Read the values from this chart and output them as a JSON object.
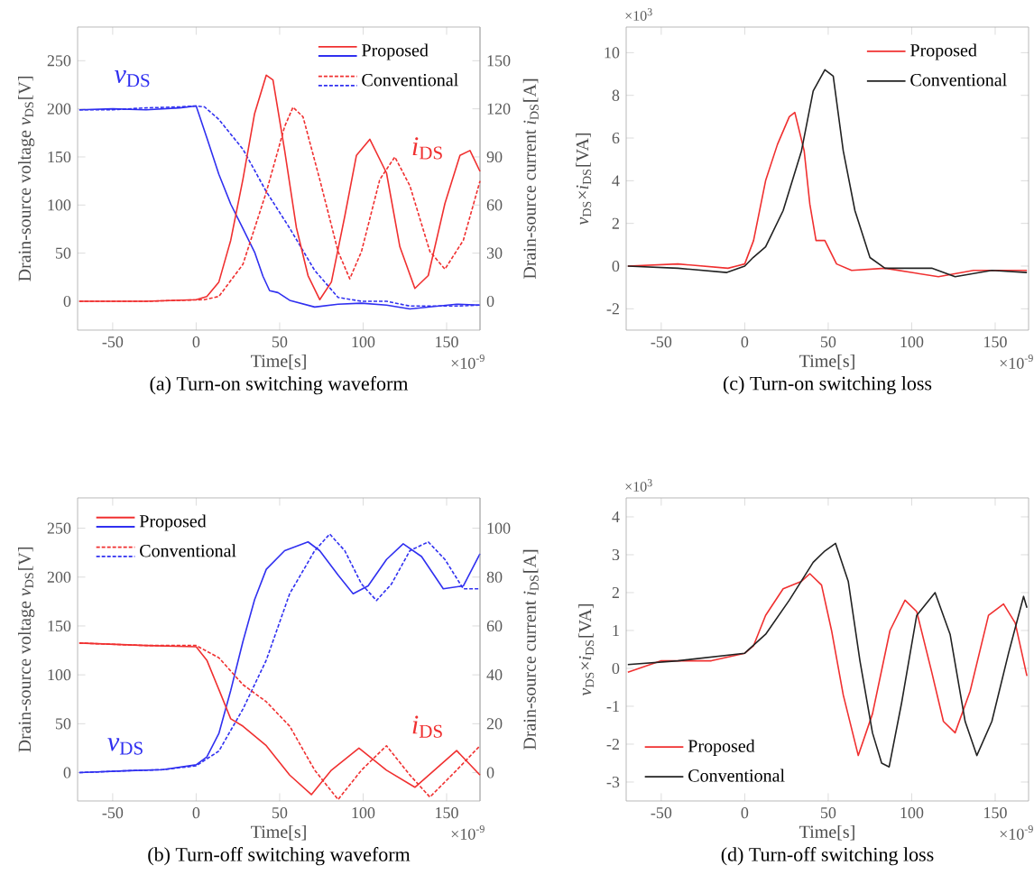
{
  "chart_data": [
    {
      "type": "line",
      "title": "(a)  Turn-on switching waveform",
      "xlabel": "Time[s]",
      "ylabel": "Drain-source voltage *v*$_{DS}$[V]",
      "y2label": "Drain-source current *i*$_{DS}$[A]",
      "xlim": [
        -71,
        170
      ],
      "xticks": [
        -50,
        0,
        50,
        100,
        150
      ],
      "ylim": [
        -30,
        285
      ],
      "yticks": [
        0,
        50,
        100,
        150,
        200,
        250
      ],
      "y2lim": [
        -18,
        171
      ],
      "y2ticks": [
        0,
        30,
        60,
        90,
        120,
        150
      ],
      "legend": "top right",
      "annotations": [
        "×10$^{-9}$",
        "*v*$_{DS}$",
        "*i*$_{DS}$"
      ],
      "series": [
        {
          "name": "Proposed",
          "color": "#f03030",
          "axis": "y2",
          "line_style": "solid",
          "x": [
            -70,
            -30,
            0,
            6.4,
            13.6,
            20.7,
            28,
            35,
            42,
            46,
            53,
            60,
            67,
            74,
            81,
            89,
            96,
            104,
            114,
            122,
            131,
            139,
            149,
            158,
            164,
            170
          ],
          "values": [
            0,
            0,
            1,
            3,
            12,
            38,
            76,
            117,
            141,
            138,
            94,
            46,
            16,
            1,
            12,
            53,
            91,
            101,
            80,
            34,
            8,
            16,
            61,
            91,
            94,
            81
          ]
        },
        {
          "color": "#3030f0",
          "line_style": "solid",
          "x": [
            -70,
            -50,
            -30,
            -10,
            0,
            6.4,
            13.6,
            20.7,
            27.9,
            35,
            40,
            44,
            49,
            56,
            71,
            85,
            99,
            114,
            128,
            156,
            170
          ],
          "values": [
            199,
            200,
            199,
            201,
            203,
            170,
            132,
            101,
            76,
            51,
            26,
            11,
            9,
            1,
            -6,
            -3,
            -2,
            -4,
            -8,
            -3,
            -4
          ]
        },
        {
          "name": "Conventional",
          "color": "#f03030",
          "axis": "y2",
          "line_style": "dashed",
          "x": [
            -70,
            -30,
            5,
            13.6,
            28,
            42,
            53,
            58,
            64,
            74,
            85,
            92,
            99,
            110,
            119,
            128,
            140,
            149,
            160,
            170
          ],
          "values": [
            0,
            0,
            1,
            3,
            23,
            68,
            109,
            121,
            115,
            76,
            31,
            14,
            31,
            76,
            90,
            72,
            31,
            20,
            38,
            75
          ]
        },
        {
          "color": "#3030f0",
          "line_style": "dashed",
          "x": [
            -70,
            -50,
            -30,
            -10,
            0,
            5,
            13.6,
            28,
            42,
            56,
            71,
            85,
            99,
            114,
            128,
            156,
            170
          ],
          "values": [
            199,
            199,
            201,
            202,
            203,
            202,
            189,
            158,
            114,
            76,
            32,
            4,
            0,
            0,
            -5,
            -5,
            -4
          ]
        }
      ]
    },
    {
      "type": "line",
      "title": "(c)  Turn-on switching loss",
      "xlabel": "Time[s]",
      "ylabel": "*v*$_{DS}$×*i*$_{DS}$[VA]",
      "xlim": [
        -71,
        170
      ],
      "xticks": [
        -50,
        0,
        50,
        100,
        150
      ],
      "ylim": [
        -3,
        11.2
      ],
      "yticks": [
        -2,
        0,
        2,
        4,
        6,
        8,
        10
      ],
      "legend": "top right",
      "annotations": [
        "×10$^{-9}$",
        "×10$^{3}$"
      ],
      "series": [
        {
          "name": "Proposed",
          "color": "#f03030",
          "line_style": "solid",
          "x": [
            -70,
            -40,
            -10,
            -5,
            0,
            5.3,
            12.5,
            19.6,
            26.7,
            30,
            35.6,
            39,
            42.7,
            48,
            55,
            64,
            84,
            116,
            137,
            169
          ],
          "values": [
            0,
            0.1,
            -0.1,
            0,
            0.1,
            1.2,
            4.0,
            5.7,
            7.0,
            7.2,
            5.4,
            2.9,
            1.2,
            1.2,
            0.1,
            -0.2,
            -0.1,
            -0.5,
            -0.2,
            -0.2
          ]
        },
        {
          "name": "Conventional",
          "color": "#222222",
          "line_style": "solid",
          "x": [
            -70,
            -40,
            -10.7,
            0,
            5,
            12.5,
            23,
            34,
            41,
            48,
            53,
            59,
            66,
            75,
            84,
            112,
            126,
            148,
            169
          ],
          "values": [
            0,
            -0.1,
            -0.3,
            0,
            0.4,
            0.9,
            2.6,
            5.4,
            8.2,
            9.2,
            8.9,
            5.4,
            2.6,
            0.4,
            -0.1,
            -0.1,
            -0.5,
            -0.2,
            -0.3
          ]
        }
      ]
    },
    {
      "type": "line",
      "title": "(b)  Turn-off switching waveform",
      "xlabel": "Time[s]",
      "ylabel": "Drain-source voltage *v*$_{DS}$[V]",
      "y2label": "Drain-source current *i*$_{DS}$[A]",
      "xlim": [
        -71,
        170
      ],
      "xticks": [
        -50,
        0,
        50,
        100,
        150
      ],
      "ylim": [
        -29,
        281
      ],
      "yticks": [
        0,
        50,
        100,
        150,
        200,
        250
      ],
      "y2lim": [
        -11.6,
        112.4
      ],
      "y2ticks": [
        0,
        20,
        40,
        60,
        80,
        100
      ],
      "legend": "top left",
      "annotations": [
        "×10$^{-9}$",
        "*v*$_{DS}$",
        "*i*$_{DS}$"
      ],
      "series": [
        {
          "name": "Proposed",
          "color": "#f03030",
          "axis": "y2",
          "line_style": "solid",
          "x": [
            -70,
            -30,
            0,
            6.4,
            13.6,
            20.7,
            28,
            42,
            56,
            69,
            81,
            97.5,
            114,
            131,
            156,
            170
          ],
          "values": [
            53,
            52,
            51.5,
            46,
            34,
            22,
            19,
            11,
            -1,
            -9,
            1,
            10,
            1,
            -6,
            9,
            -1
          ]
        },
        {
          "color": "#3030f0",
          "line_style": "solid",
          "x": [
            -70,
            -40,
            -20,
            0,
            6.4,
            13.6,
            20.7,
            28,
            35,
            42,
            53,
            67,
            74,
            85,
            94,
            103,
            114,
            124,
            135,
            148,
            160,
            170
          ],
          "values": [
            0,
            2,
            3,
            8,
            16,
            40,
            84,
            134,
            177,
            208,
            227,
            236,
            227,
            202,
            183,
            191,
            218,
            234,
            221,
            188,
            191,
            224
          ]
        },
        {
          "name": "Conventional",
          "color": "#f03030",
          "axis": "y2",
          "line_style": "dashed",
          "x": [
            -70,
            -30,
            0,
            13.6,
            28,
            42,
            56,
            71,
            85,
            99,
            114,
            128,
            140,
            156,
            170
          ],
          "values": [
            53,
            52,
            52,
            47,
            36,
            29,
            19,
            1,
            -11,
            1,
            11,
            -1,
            -10,
            1,
            11
          ]
        },
        {
          "color": "#3030f0",
          "line_style": "dashed",
          "x": [
            -70,
            -40,
            -20,
            0,
            13.6,
            28,
            42,
            56,
            71,
            80,
            89,
            99,
            108,
            117,
            128,
            139,
            149,
            160,
            170
          ],
          "values": [
            0,
            2,
            3,
            7,
            22,
            65,
            115,
            183,
            227,
            244,
            227,
            193,
            176,
            193,
            227,
            236,
            218,
            188,
            188
          ]
        }
      ]
    },
    {
      "type": "line",
      "title": "(d)  Turn-off switching loss",
      "xlabel": "Time[s]",
      "ylabel": "*v*$_{DS}$×*i*$_{DS}$[VA]",
      "xlim": [
        -71,
        170
      ],
      "xticks": [
        -50,
        0,
        50,
        100,
        150
      ],
      "ylim": [
        -3.5,
        4.5
      ],
      "yticks": [
        -3,
        -2,
        -1,
        0,
        1,
        2,
        3,
        4
      ],
      "legend": "bottom left",
      "annotations": [
        "×10$^{-9}$",
        "×10$^{3}$"
      ],
      "series": [
        {
          "name": "Proposed",
          "color": "#f03030",
          "line_style": "solid",
          "x": [
            -70,
            -50,
            -20,
            0,
            5.3,
            12.5,
            23,
            34,
            39,
            46,
            52,
            59,
            68,
            76.5,
            87,
            96,
            103,
            112,
            119,
            126,
            135,
            146,
            155,
            162,
            169
          ],
          "values": [
            -0.1,
            0.2,
            0.2,
            0.4,
            0.6,
            1.4,
            2.1,
            2.3,
            2.5,
            2.2,
            1.0,
            -0.7,
            -2.3,
            -1.2,
            1.0,
            1.8,
            1.5,
            -0.1,
            -1.4,
            -1.7,
            -0.6,
            1.4,
            1.7,
            1.2,
            -0.2
          ]
        },
        {
          "name": "Conventional",
          "color": "#222222",
          "line_style": "solid",
          "x": [
            -70,
            -40,
            0,
            12.5,
            26.7,
            41,
            48,
            54.4,
            62,
            69,
            76.5,
            82,
            86.5,
            94,
            103,
            114,
            123,
            132,
            139,
            148,
            158,
            167,
            169
          ],
          "values": [
            0.1,
            0.2,
            0.4,
            0.9,
            1.8,
            2.8,
            3.1,
            3.3,
            2.3,
            0.2,
            -1.7,
            -2.5,
            -2.6,
            -0.9,
            1.4,
            2.0,
            0.9,
            -1.4,
            -2.3,
            -1.4,
            0.4,
            1.9,
            1.6
          ]
        }
      ]
    }
  ]
}
